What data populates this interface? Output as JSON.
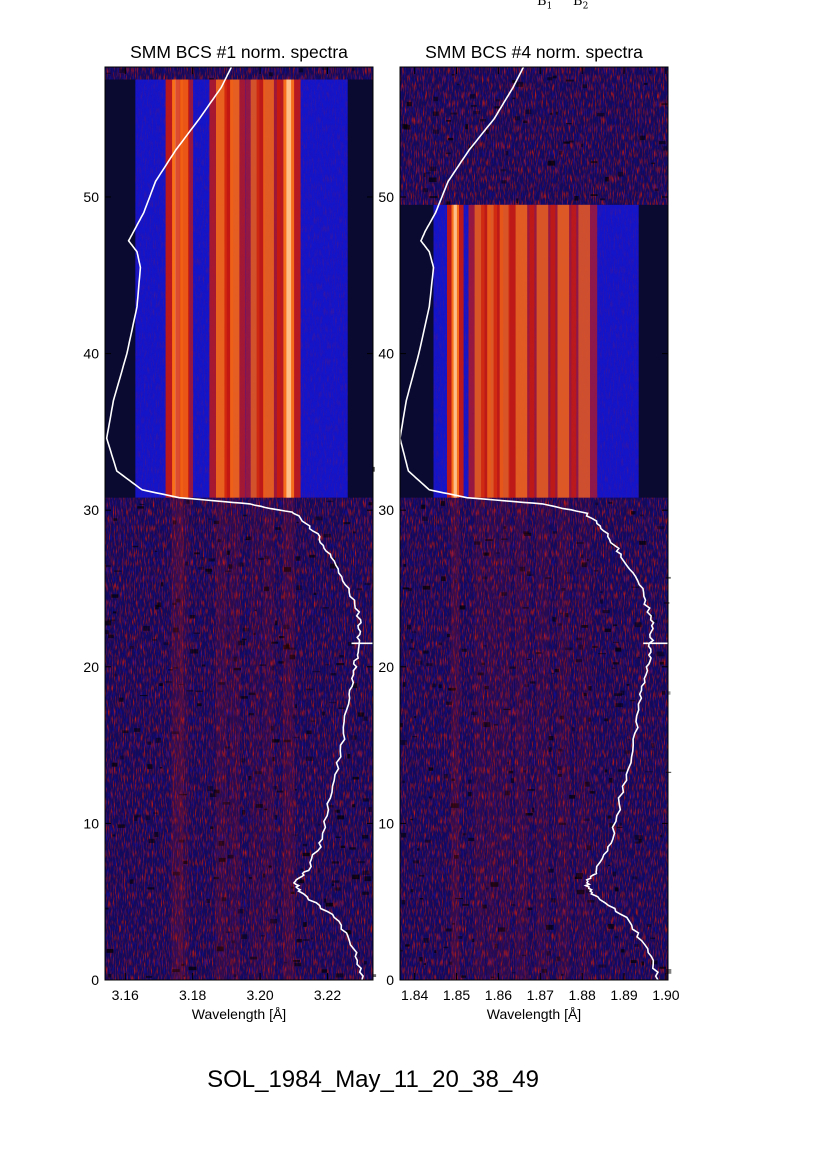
{
  "top_marks": [
    {
      "base": "B",
      "sub": "1"
    },
    {
      "base": "B",
      "sub": "2"
    }
  ],
  "caption": "SOL_1984_May_11_20_38_49",
  "colors": {
    "black": "#000000",
    "blue": "#1414c8",
    "dark_blue": "#120a5a",
    "purple": "#5a1a7a",
    "red": "#cc1a0a",
    "orange": "#ff7a1a",
    "light": "#ffd9b0",
    "curve": "#ffffff"
  },
  "chart_data": [
    {
      "type": "heatmap",
      "title": "SMM BCS #1 norm. spectra",
      "xlabel": "Wavelength [Å]",
      "ylabel": "",
      "xlim": [
        3.154,
        3.2335
      ],
      "ylim": [
        0,
        58.3
      ],
      "x_ticks": [
        3.16,
        3.18,
        3.2,
        3.22
      ],
      "x_tick_labels": [
        "3.16",
        "3.18",
        "3.20",
        "3.22"
      ],
      "y_ticks": [
        0,
        10,
        20,
        30,
        40,
        50
      ],
      "y_tick_labels": [
        "0",
        "10",
        "20",
        "30",
        "40",
        "50"
      ],
      "bright_region": {
        "x": [
          3.163,
          3.226
        ],
        "y": [
          30.8,
          57.5
        ]
      },
      "lines": [
        {
          "wavelength": 3.1755,
          "strength": 1.0,
          "width": 0.0016
        },
        {
          "wavelength": 3.1775,
          "strength": 0.55,
          "width": 0.0012
        },
        {
          "wavelength": 3.1885,
          "strength": 0.75,
          "width": 0.0016
        },
        {
          "wavelength": 3.1925,
          "strength": 0.7,
          "width": 0.0014
        },
        {
          "wavelength": 3.1985,
          "strength": 0.5,
          "width": 0.0013
        },
        {
          "wavelength": 3.2025,
          "strength": 0.65,
          "width": 0.0016
        },
        {
          "wavelength": 3.2085,
          "strength": 0.95,
          "width": 0.0016
        }
      ],
      "lightcurve": {
        "y": [
          0,
          2,
          4,
          5.5,
          6.2,
          7,
          9,
          12,
          15,
          18,
          20,
          21.5,
          23,
          25,
          27,
          28.5,
          29.8,
          30.4,
          30.8,
          31.3,
          32.5,
          34.6,
          37,
          40,
          43,
          45.5,
          46.5,
          47.2,
          47.8,
          49,
          51,
          53,
          55,
          57,
          58.3
        ],
        "x": [
          3.2307,
          3.228,
          3.222,
          3.2125,
          3.2105,
          3.214,
          3.2185,
          3.221,
          3.2245,
          3.2265,
          3.228,
          3.2295,
          3.2295,
          3.2265,
          3.221,
          3.2165,
          3.2105,
          3.197,
          3.176,
          3.165,
          3.1575,
          3.1545,
          3.1565,
          3.1605,
          3.1635,
          3.1645,
          3.1635,
          3.161,
          3.1625,
          3.1655,
          3.169,
          3.175,
          3.182,
          3.1885,
          3.1915
        ]
      }
    },
    {
      "type": "heatmap",
      "title": "SMM BCS #4 norm. spectra",
      "xlabel": "Wavelength [Å]",
      "ylabel": "",
      "xlim": [
        1.8365,
        1.9005
      ],
      "ylim": [
        0,
        58.3
      ],
      "x_ticks": [
        1.84,
        1.85,
        1.86,
        1.87,
        1.88,
        1.89,
        1.9
      ],
      "x_tick_labels": [
        "1.84",
        "1.85",
        "1.86",
        "1.87",
        "1.88",
        "1.89",
        "1.90"
      ],
      "y_ticks": [
        0,
        10,
        20,
        30,
        40,
        50
      ],
      "y_tick_labels": [
        "0",
        "10",
        "20",
        "30",
        "40",
        "50"
      ],
      "bright_region": {
        "x": [
          1.8445,
          1.8935
        ],
        "y": [
          30.8,
          49.5
        ]
      },
      "lines": [
        {
          "wavelength": 1.8497,
          "strength": 1.0,
          "width": 0.0009
        },
        {
          "wavelength": 1.8555,
          "strength": 0.55,
          "width": 0.0012
        },
        {
          "wavelength": 1.8585,
          "strength": 0.6,
          "width": 0.0012
        },
        {
          "wavelength": 1.8615,
          "strength": 0.55,
          "width": 0.0012
        },
        {
          "wavelength": 1.8655,
          "strength": 0.65,
          "width": 0.0014
        },
        {
          "wavelength": 1.8705,
          "strength": 0.55,
          "width": 0.0014
        },
        {
          "wavelength": 1.8755,
          "strength": 0.6,
          "width": 0.0014
        },
        {
          "wavelength": 1.8805,
          "strength": 0.45,
          "width": 0.0014
        }
      ],
      "lightcurve": {
        "y": [
          0,
          2,
          4,
          5.5,
          6.2,
          7,
          9,
          12,
          15,
          18,
          20,
          21.5,
          23,
          25,
          27,
          28.5,
          29.8,
          30.4,
          30.8,
          31.3,
          32.5,
          34.6,
          37,
          40,
          43,
          45.5,
          46.5,
          47.2,
          47.8,
          49,
          51,
          53,
          55,
          57,
          58.3
        ],
        "x": [
          1.8982,
          1.8955,
          1.8905,
          1.8825,
          1.881,
          1.8835,
          1.887,
          1.8895,
          1.8925,
          1.894,
          1.8955,
          1.8965,
          1.8965,
          1.894,
          1.8895,
          1.886,
          1.881,
          1.8705,
          1.8525,
          1.8435,
          1.8385,
          1.8365,
          1.838,
          1.841,
          1.8435,
          1.8445,
          1.8435,
          1.8415,
          1.8425,
          1.845,
          1.848,
          1.853,
          1.859,
          1.8635,
          1.866
        ]
      }
    }
  ]
}
